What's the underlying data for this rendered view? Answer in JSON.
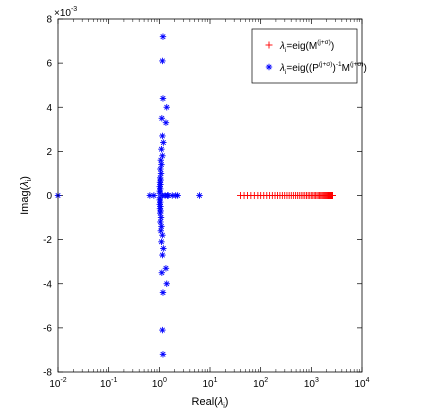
{
  "chart_data": {
    "type": "scatter",
    "title": "",
    "xlabel": {
      "main": "Real(",
      "symbol": "λ",
      "sub": "i",
      "close": ")"
    },
    "ylabel": {
      "main": "Imag(",
      "symbol": "λ",
      "sub": "i",
      "close": ")"
    },
    "xscale": "log",
    "xlim": [
      0.01,
      10000
    ],
    "ylim": [
      -0.008,
      0.008
    ],
    "y_exponent_label": {
      "base": "×10",
      "exp": "-3"
    },
    "x_ticks": [
      0.01,
      0.1,
      1,
      10,
      100,
      1000,
      10000
    ],
    "x_tick_labels": [
      {
        "base": "10",
        "exp": "-2"
      },
      {
        "base": "10",
        "exp": "-1"
      },
      {
        "base": "10",
        "exp": "0"
      },
      {
        "base": "10",
        "exp": "1"
      },
      {
        "base": "10",
        "exp": "2"
      },
      {
        "base": "10",
        "exp": "3"
      },
      {
        "base": "10",
        "exp": "4"
      }
    ],
    "y_ticks": [
      -0.008,
      -0.006,
      -0.004,
      -0.002,
      0,
      0.002,
      0.004,
      0.006,
      0.008
    ],
    "y_tick_labels": [
      "-8",
      "-6",
      "-4",
      "-2",
      "0",
      "2",
      "4",
      "6",
      "8"
    ],
    "grid": false,
    "legend_position": "top-right",
    "series": [
      {
        "name": "λi=eig(M(j+σ))",
        "legend": {
          "lambda": "λ",
          "sub": "i",
          "text": "=eig(M",
          "sup": "(j+σ)",
          "close": ")"
        },
        "marker": "+",
        "color": "#ff0000",
        "points": [
          [
            40,
            0
          ],
          [
            47,
            0
          ],
          [
            55,
            0
          ],
          [
            64,
            0
          ],
          [
            75,
            0
          ],
          [
            88,
            0
          ],
          [
            100,
            0
          ],
          [
            115,
            0
          ],
          [
            132,
            0
          ],
          [
            150,
            0
          ],
          [
            170,
            0
          ],
          [
            192,
            0
          ],
          [
            215,
            0
          ],
          [
            240,
            0
          ],
          [
            268,
            0
          ],
          [
            298,
            0
          ],
          [
            330,
            0
          ],
          [
            365,
            0
          ],
          [
            402,
            0
          ],
          [
            442,
            0
          ],
          [
            485,
            0
          ],
          [
            530,
            0
          ],
          [
            578,
            0
          ],
          [
            630,
            0
          ],
          [
            685,
            0
          ],
          [
            742,
            0
          ],
          [
            802,
            0
          ],
          [
            865,
            0
          ],
          [
            930,
            0
          ],
          [
            998,
            0
          ],
          [
            1068,
            0
          ],
          [
            1140,
            0
          ],
          [
            1215,
            0
          ],
          [
            1292,
            0
          ],
          [
            1370,
            0
          ],
          [
            1450,
            0
          ],
          [
            1530,
            0
          ],
          [
            1610,
            0
          ],
          [
            1690,
            0
          ],
          [
            1770,
            0
          ],
          [
            1850,
            0
          ],
          [
            1925,
            0
          ],
          [
            2000,
            0
          ],
          [
            2070,
            0
          ],
          [
            2140,
            0
          ],
          [
            2205,
            0
          ],
          [
            2265,
            0
          ],
          [
            2320,
            0
          ],
          [
            2370,
            0
          ],
          [
            2415,
            0
          ],
          [
            2455,
            0
          ],
          [
            2490,
            0
          ],
          [
            2520,
            0
          ],
          [
            2545,
            0
          ],
          [
            2565,
            0
          ],
          [
            2580,
            0
          ],
          [
            2590,
            0
          ],
          [
            2598,
            0
          ],
          [
            2604,
            0
          ],
          [
            2608,
            0
          ]
        ]
      },
      {
        "name": "λi=eig((P(j+σ))-1M(j+σ))",
        "legend": {
          "lambda": "λ",
          "sub": "i",
          "text": "=eig((P",
          "sup1": "(j+σ)",
          "mid": ")",
          "sup2": "-1",
          "text2": "M",
          "sup3": "(j+σ)",
          "close": ")"
        },
        "marker": "*",
        "color": "#0000ff",
        "points": [
          [
            0.01,
            0
          ],
          [
            0.65,
            0
          ],
          [
            0.78,
            0
          ],
          [
            1.15,
            0
          ],
          [
            1.3,
            0
          ],
          [
            1.45,
            0
          ],
          [
            1.5,
            0
          ],
          [
            1.8,
            0
          ],
          [
            2.1,
            0
          ],
          [
            2.3,
            0
          ],
          [
            6.2,
            0
          ],
          [
            1.18,
            0.0072
          ],
          [
            1.15,
            0.0061
          ],
          [
            1.18,
            0.0044
          ],
          [
            1.4,
            0.004
          ],
          [
            1.12,
            0.0035
          ],
          [
            1.35,
            0.0033
          ],
          [
            1.15,
            0.0027
          ],
          [
            1.2,
            0.0024
          ],
          [
            1.1,
            0.0021
          ],
          [
            1.15,
            0.0018
          ],
          [
            1.07,
            0.0016
          ],
          [
            1.1,
            0.0014
          ],
          [
            1.05,
            0.0012
          ],
          [
            1.08,
            0.001
          ],
          [
            1.04,
            0.0008
          ],
          [
            1.06,
            0.0007
          ],
          [
            1.03,
            0.0006
          ],
          [
            1.05,
            0.0005
          ],
          [
            1.02,
            0.0004
          ],
          [
            1.04,
            0.0003
          ],
          [
            1.02,
            0.0002
          ],
          [
            1.03,
            0.0001
          ],
          [
            1.18,
            -0.0072
          ],
          [
            1.15,
            -0.0061
          ],
          [
            1.18,
            -0.0044
          ],
          [
            1.4,
            -0.004
          ],
          [
            1.12,
            -0.0035
          ],
          [
            1.35,
            -0.0033
          ],
          [
            1.15,
            -0.0027
          ],
          [
            1.2,
            -0.0024
          ],
          [
            1.1,
            -0.0021
          ],
          [
            1.15,
            -0.0018
          ],
          [
            1.07,
            -0.0016
          ],
          [
            1.1,
            -0.0014
          ],
          [
            1.05,
            -0.0012
          ],
          [
            1.08,
            -0.001
          ],
          [
            1.04,
            -0.0008
          ],
          [
            1.06,
            -0.0007
          ],
          [
            1.03,
            -0.0006
          ],
          [
            1.05,
            -0.0005
          ],
          [
            1.02,
            -0.0004
          ],
          [
            1.04,
            -0.0003
          ],
          [
            1.02,
            -0.0002
          ],
          [
            1.03,
            -0.0001
          ]
        ]
      }
    ]
  }
}
